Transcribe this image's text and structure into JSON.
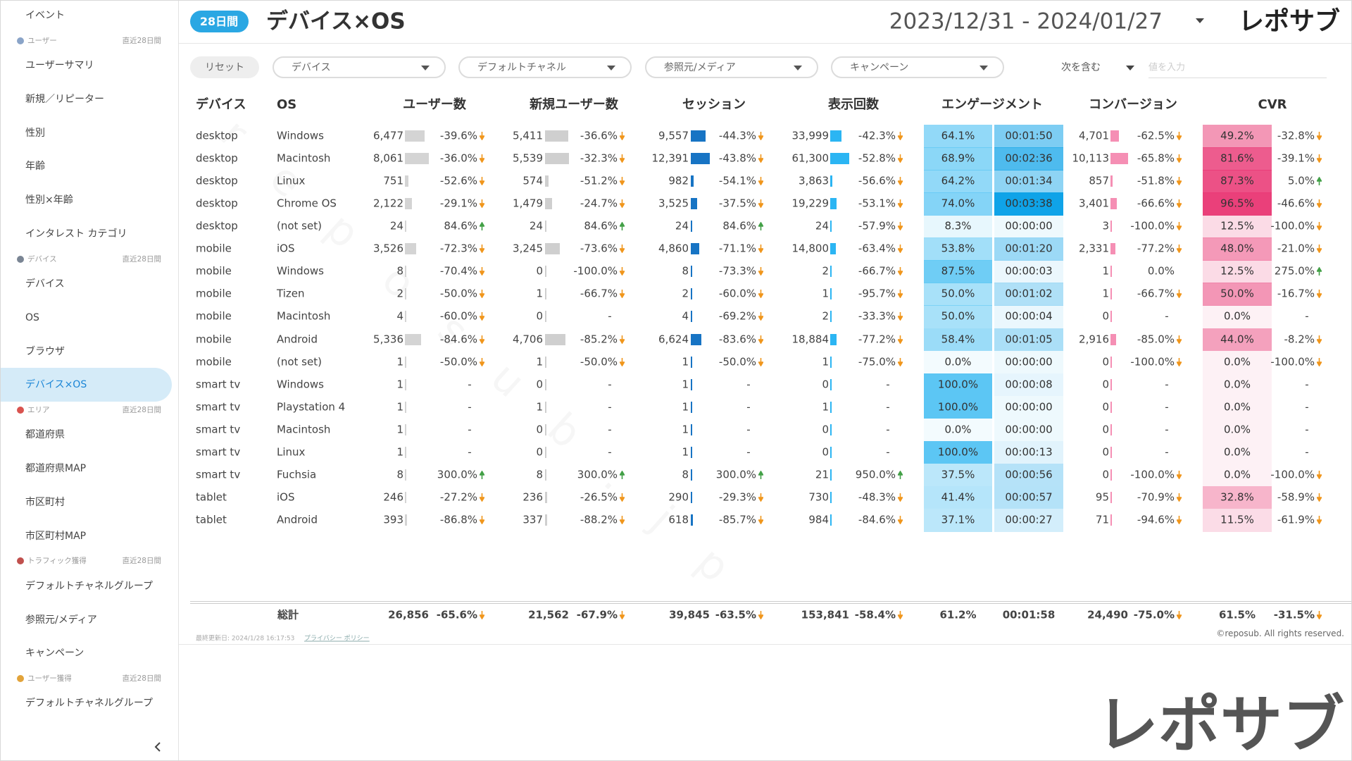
{
  "sidebar": {
    "top_items": [
      "イベント"
    ],
    "sections": [
      {
        "label": "ユーザー",
        "period": "直近28日間",
        "items": [
          "ユーザーサマリ",
          "新規／リピーター",
          "性別",
          "年齢",
          "性別×年齢",
          "インタレスト カテゴリ"
        ]
      },
      {
        "label": "デバイス",
        "period": "直近28日間",
        "items": [
          "デバイス",
          "OS",
          "ブラウザ",
          "デバイス×OS"
        ]
      },
      {
        "label": "エリア",
        "period": "直近28日間",
        "items": [
          "都道府県",
          "都道府県MAP",
          "市区町村",
          "市区町村MAP"
        ]
      },
      {
        "label": "トラフィック獲得",
        "period": "直近28日間",
        "items": [
          "デフォルトチャネルグループ",
          "参照元/メディア",
          "キャンペーン"
        ]
      },
      {
        "label": "ユーザー獲得",
        "period": "直近28日間",
        "items": [
          "デフォルトチャネルグループ"
        ]
      }
    ],
    "active": {
      "section": 1,
      "item": 3
    }
  },
  "header": {
    "badge": "28日間",
    "title": "デバイス×OS",
    "date_range": "2023/12/31 - 2024/01/27",
    "logo": "レポサブ"
  },
  "filters": {
    "reset": "リセット",
    "dropdowns": [
      "デバイス",
      "デフォルトチャネル",
      "参照元/メディア",
      "キャンペーン"
    ],
    "match": "次を含む",
    "placeholder": "値を入力"
  },
  "table": {
    "columns": [
      "デバイス",
      "OS",
      "ユーザー数",
      "新規ユーザー数",
      "セッション",
      "表示回数",
      "エンゲージメント",
      "コンバージョン",
      "CVR"
    ],
    "colors": {
      "users_bar": "#d4d4d4",
      "new_users_bar": "#cfcfcf",
      "sessions_bar": "#1774c4",
      "views_bar": "#2bb5f3",
      "conversions_bar": "#f58fb4",
      "engagement_heat": "#5cc6f4",
      "time_heat": "#0fa3e8",
      "cvr_heat": "#e93a76",
      "down": "#f0961c",
      "up": "#43a047"
    },
    "rows": [
      [
        "desktop",
        "Windows",
        "6,477",
        "-39.6%",
        "5,411",
        "-36.6%",
        "9,557",
        "-44.3%",
        "33,999",
        "-42.3%",
        "64.1%",
        "00:01:50",
        "4,701",
        "-62.5%",
        "49.2%",
        "-32.8%"
      ],
      [
        "desktop",
        "Macintosh",
        "8,061",
        "-36.0%",
        "5,539",
        "-32.3%",
        "12,391",
        "-43.8%",
        "61,300",
        "-52.8%",
        "68.9%",
        "00:02:36",
        "10,113",
        "-65.8%",
        "81.6%",
        "-39.1%"
      ],
      [
        "desktop",
        "Linux",
        "751",
        "-52.6%",
        "574",
        "-51.2%",
        "982",
        "-54.1%",
        "3,863",
        "-56.6%",
        "64.2%",
        "00:01:34",
        "857",
        "-51.8%",
        "87.3%",
        "5.0%"
      ],
      [
        "desktop",
        "Chrome OS",
        "2,122",
        "-29.1%",
        "1,479",
        "-24.7%",
        "3,525",
        "-37.5%",
        "19,229",
        "-53.1%",
        "74.0%",
        "00:03:38",
        "3,401",
        "-66.6%",
        "96.5%",
        "-46.6%"
      ],
      [
        "desktop",
        "(not set)",
        "24",
        "84.6%",
        "24",
        "84.6%",
        "24",
        "84.6%",
        "24",
        "-57.9%",
        "8.3%",
        "00:00:00",
        "3",
        "-100.0%",
        "12.5%",
        "-100.0%"
      ],
      [
        "mobile",
        "iOS",
        "3,526",
        "-72.3%",
        "3,245",
        "-73.6%",
        "4,860",
        "-71.1%",
        "14,800",
        "-63.4%",
        "53.8%",
        "00:01:20",
        "2,331",
        "-77.2%",
        "48.0%",
        "-21.0%"
      ],
      [
        "mobile",
        "Windows",
        "8",
        "-70.4%",
        "0",
        "-100.0%",
        "8",
        "-73.3%",
        "2",
        "-66.7%",
        "87.5%",
        "00:00:03",
        "1",
        "0.0%",
        "12.5%",
        "275.0%"
      ],
      [
        "mobile",
        "Tizen",
        "2",
        "-50.0%",
        "1",
        "-66.7%",
        "2",
        "-60.0%",
        "1",
        "-95.7%",
        "50.0%",
        "00:01:02",
        "1",
        "-66.7%",
        "50.0%",
        "-16.7%"
      ],
      [
        "mobile",
        "Macintosh",
        "4",
        "-60.0%",
        "0",
        "-",
        "4",
        "-69.2%",
        "2",
        "-33.3%",
        "50.0%",
        "00:00:04",
        "0",
        "-",
        "0.0%",
        "-"
      ],
      [
        "mobile",
        "Android",
        "5,336",
        "-84.6%",
        "4,706",
        "-85.2%",
        "6,624",
        "-83.6%",
        "18,884",
        "-77.2%",
        "58.4%",
        "00:01:05",
        "2,916",
        "-85.0%",
        "44.0%",
        "-8.2%"
      ],
      [
        "mobile",
        "(not set)",
        "1",
        "-50.0%",
        "1",
        "-50.0%",
        "1",
        "-50.0%",
        "1",
        "-75.0%",
        "0.0%",
        "00:00:00",
        "0",
        "-100.0%",
        "0.0%",
        "-100.0%"
      ],
      [
        "smart tv",
        "Windows",
        "1",
        "-",
        "0",
        "-",
        "1",
        "-",
        "0",
        "-",
        "100.0%",
        "00:00:08",
        "0",
        "-",
        "0.0%",
        "-"
      ],
      [
        "smart tv",
        "Playstation 4",
        "1",
        "-",
        "1",
        "-",
        "1",
        "-",
        "1",
        "-",
        "100.0%",
        "00:00:00",
        "0",
        "-",
        "0.0%",
        "-"
      ],
      [
        "smart tv",
        "Macintosh",
        "1",
        "-",
        "0",
        "-",
        "1",
        "-",
        "0",
        "-",
        "0.0%",
        "00:00:00",
        "0",
        "-",
        "0.0%",
        "-"
      ],
      [
        "smart tv",
        "Linux",
        "1",
        "-",
        "0",
        "-",
        "1",
        "-",
        "0",
        "-",
        "100.0%",
        "00:00:13",
        "0",
        "-",
        "0.0%",
        "-"
      ],
      [
        "smart tv",
        "Fuchsia",
        "8",
        "300.0%",
        "8",
        "300.0%",
        "8",
        "300.0%",
        "21",
        "950.0%",
        "37.5%",
        "00:00:56",
        "0",
        "-100.0%",
        "0.0%",
        "-100.0%"
      ],
      [
        "tablet",
        "iOS",
        "246",
        "-27.2%",
        "236",
        "-26.5%",
        "290",
        "-29.3%",
        "730",
        "-48.3%",
        "41.4%",
        "00:00:57",
        "95",
        "-70.9%",
        "32.8%",
        "-58.9%"
      ],
      [
        "tablet",
        "Android",
        "393",
        "-86.8%",
        "337",
        "-88.2%",
        "618",
        "-85.7%",
        "984",
        "-84.6%",
        "37.1%",
        "00:00:27",
        "71",
        "-94.6%",
        "11.5%",
        "-61.9%"
      ]
    ],
    "total": {
      "label": "総計",
      "cells": [
        "26,856",
        "-65.6%",
        "21,562",
        "-67.9%",
        "39,845",
        "-63.5%",
        "153,841",
        "-58.4%",
        "61.2%",
        "00:01:58",
        "24,490",
        "-75.0%",
        "61.5%",
        "-31.5%"
      ]
    }
  },
  "footer": {
    "updated": "最終更新日: 2024/1/28 16:17:53",
    "privacy": "プライバシー ポリシー",
    "copyright": "©reposub. All rights reserved."
  },
  "watermark": "reposub.jp"
}
